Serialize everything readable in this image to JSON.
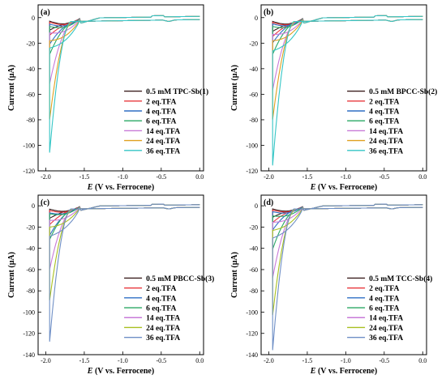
{
  "chart_data": [
    {
      "type": "line",
      "panel_label": "(a)",
      "xlabel_italic": "E",
      "xlabel_rest": " (V vs. Ferrocene)",
      "ylabel": "Current (μA)",
      "xlim": [
        -2.1,
        0.05
      ],
      "ylim": [
        -120,
        10
      ],
      "xticks": [
        "-2.0",
        "-1.5",
        "-1.0",
        "-0.5",
        "0.0"
      ],
      "yticks": [
        "0",
        "-20",
        "-40",
        "-60",
        "-80",
        "-100",
        "-120"
      ],
      "series": [
        {
          "name": "0.5 mM TPC-Sb(1)",
          "color": "#3b1f1f",
          "peak": -9
        },
        {
          "name": "2 eq.TFA",
          "color": "#e8383d",
          "peak": -13
        },
        {
          "name": "4 eq.TFA",
          "color": "#2f6fc4",
          "peak": -20
        },
        {
          "name": "6 eq.TFA",
          "color": "#2aa865",
          "peak": -28
        },
        {
          "name": "14 eq.TFA",
          "color": "#c87ad8",
          "peak": -51
        },
        {
          "name": "24 eq.TFA",
          "color": "#e0a020",
          "peak": -79
        },
        {
          "name": "36 eq.TFA",
          "color": "#35c6c6",
          "peak": -105
        }
      ]
    },
    {
      "type": "line",
      "panel_label": "(b)",
      "xlabel_italic": "E",
      "xlabel_rest": " (V vs. Ferrocene)",
      "ylabel": "Current (μA)",
      "xlim": [
        -2.1,
        0.05
      ],
      "ylim": [
        -120,
        10
      ],
      "xticks": [
        "-2.0",
        "-1.5",
        "-1.0",
        "-0.5",
        "0.0"
      ],
      "yticks": [
        "0",
        "-20",
        "-40",
        "-60",
        "-80",
        "-100",
        "-120"
      ],
      "series": [
        {
          "name": "0.5 mM BPCC-Sb(2)",
          "color": "#3b1f1f",
          "peak": -10
        },
        {
          "name": "2 eq.TFA",
          "color": "#e8383d",
          "peak": -14
        },
        {
          "name": "4 eq.TFA",
          "color": "#2f6fc4",
          "peak": -19
        },
        {
          "name": "6 eq.TFA",
          "color": "#2aa865",
          "peak": -28
        },
        {
          "name": "14 eq.TFA",
          "color": "#c87ad8",
          "peak": -56
        },
        {
          "name": "24 eq.TFA",
          "color": "#e0a020",
          "peak": -79
        },
        {
          "name": "36 eq.TFA",
          "color": "#35c6c6",
          "peak": -115
        }
      ]
    },
    {
      "type": "line",
      "panel_label": "(c)",
      "xlabel_italic": "E",
      "xlabel_rest": " (V vs. Ferrocene)",
      "ylabel": "Current (μA)",
      "xlim": [
        -2.1,
        0.05
      ],
      "ylim": [
        -140,
        10
      ],
      "xticks": [
        "-2.0",
        "-1.5",
        "-1.0",
        "-0.5",
        "0.0"
      ],
      "yticks": [
        "0",
        "-20",
        "-40",
        "-60",
        "-80",
        "-100",
        "-120",
        "-140"
      ],
      "series": [
        {
          "name": "0.5 mM PBCC-Sb(3)",
          "color": "#3b1f1f",
          "peak": -11
        },
        {
          "name": "2 eq.TFA",
          "color": "#e8383d",
          "peak": -17
        },
        {
          "name": "4 eq.TFA",
          "color": "#2f6fc4",
          "peak": -27
        },
        {
          "name": "6 eq.TFA",
          "color": "#2aa865",
          "peak": -31
        },
        {
          "name": "14 eq.TFA",
          "color": "#c87ad8",
          "peak": -59
        },
        {
          "name": "24 eq.TFA",
          "color": "#a8c020",
          "peak": -88
        },
        {
          "name": "36 eq.TFA",
          "color": "#6f8fc6",
          "peak": -127
        }
      ]
    },
    {
      "type": "line",
      "panel_label": "(d)",
      "xlabel_italic": "E",
      "xlabel_rest": " (V vs. Ferrocene)",
      "ylabel": "Current (μA)",
      "xlim": [
        -2.1,
        0.05
      ],
      "ylim": [
        -140,
        10
      ],
      "xticks": [
        "-2.0",
        "-1.5",
        "-1.0",
        "-0.5",
        "0.0"
      ],
      "yticks": [
        "0",
        "-20",
        "-40",
        "-60",
        "-80",
        "-100",
        "-120",
        "-140"
      ],
      "series": [
        {
          "name": "0.5 mM TCC-Sb(4)",
          "color": "#3b1f1f",
          "peak": -10
        },
        {
          "name": "2 eq.TFA",
          "color": "#e8383d",
          "peak": -15
        },
        {
          "name": "4 eq.TFA",
          "color": "#2f6fc4",
          "peak": -22
        },
        {
          "name": "6 eq.TFA",
          "color": "#2aa865",
          "peak": -40
        },
        {
          "name": "14 eq.TFA",
          "color": "#c87ad8",
          "peak": -67
        },
        {
          "name": "24 eq.TFA",
          "color": "#a8c020",
          "peak": -102
        },
        {
          "name": "36 eq.TFA",
          "color": "#6f8fc6",
          "peak": -135
        }
      ]
    }
  ]
}
